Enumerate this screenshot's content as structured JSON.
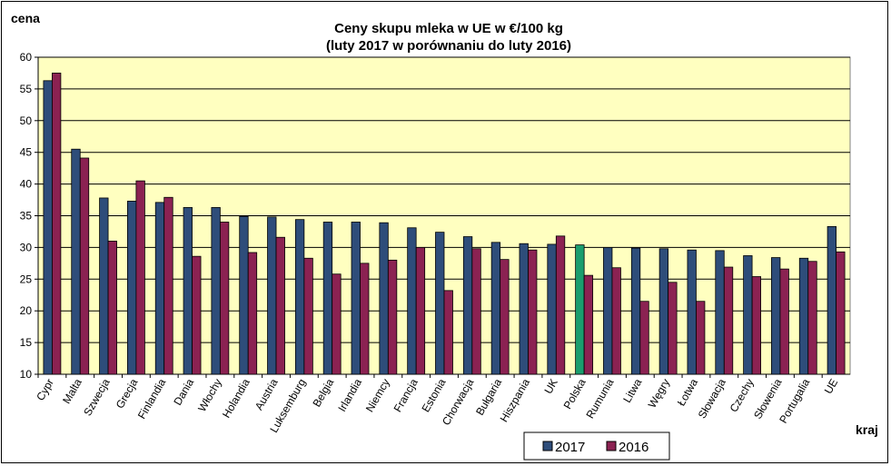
{
  "chart_data": {
    "type": "bar",
    "title": "Ceny skupu mleka  w UE w €/100 kg",
    "subtitle": "(luty  2017 w porównaniu do luty 2016)",
    "ylabel": "cena",
    "xlabel": "kraj",
    "ylim": [
      10,
      60
    ],
    "yticks": [
      10,
      15,
      20,
      25,
      30,
      35,
      40,
      45,
      50,
      55,
      60
    ],
    "grid": true,
    "legend_position": "bottom",
    "plot_background": "#ffffc0",
    "categories": [
      "Cypr",
      "Malta",
      "Szwecja",
      "Grecja",
      "Finlandia",
      "Dania",
      "Włochy",
      "Holandia",
      "Austria",
      "Luksemburg",
      "Belgia",
      "Irlandia",
      "Niemcy",
      "Francja",
      "Estonia",
      "Chorwacja",
      "Bułgaria",
      "Hiszpania",
      "UK",
      "Polska",
      "Rumunia",
      "Litwa",
      "Węgry",
      "Łotwa",
      "Słowacja",
      "Czechy",
      "Słowenia",
      "Portugalia",
      "UE"
    ],
    "series": [
      {
        "name": "2017",
        "color": "#2e4d7a",
        "values": [
          56.3,
          45.5,
          37.8,
          37.3,
          37.1,
          36.3,
          36.3,
          34.9,
          34.8,
          34.4,
          34.0,
          34.0,
          33.9,
          33.1,
          32.4,
          31.7,
          30.8,
          30.6,
          30.5,
          30.4,
          30.0,
          29.9,
          29.8,
          29.6,
          29.5,
          28.7,
          28.4,
          28.3,
          33.3
        ]
      },
      {
        "name": "2016",
        "color": "#8b2252",
        "values": [
          57.5,
          44.1,
          31.0,
          40.5,
          37.9,
          28.6,
          34.0,
          29.2,
          31.6,
          28.3,
          25.8,
          27.5,
          28.0,
          30.0,
          23.2,
          29.8,
          28.1,
          29.6,
          31.8,
          25.6,
          26.8,
          21.5,
          24.5,
          21.5,
          26.9,
          25.4,
          26.6,
          27.8,
          29.3
        ]
      }
    ],
    "highlight": {
      "category": "Polska",
      "series": "2017",
      "color": "#1a9e6e"
    }
  }
}
